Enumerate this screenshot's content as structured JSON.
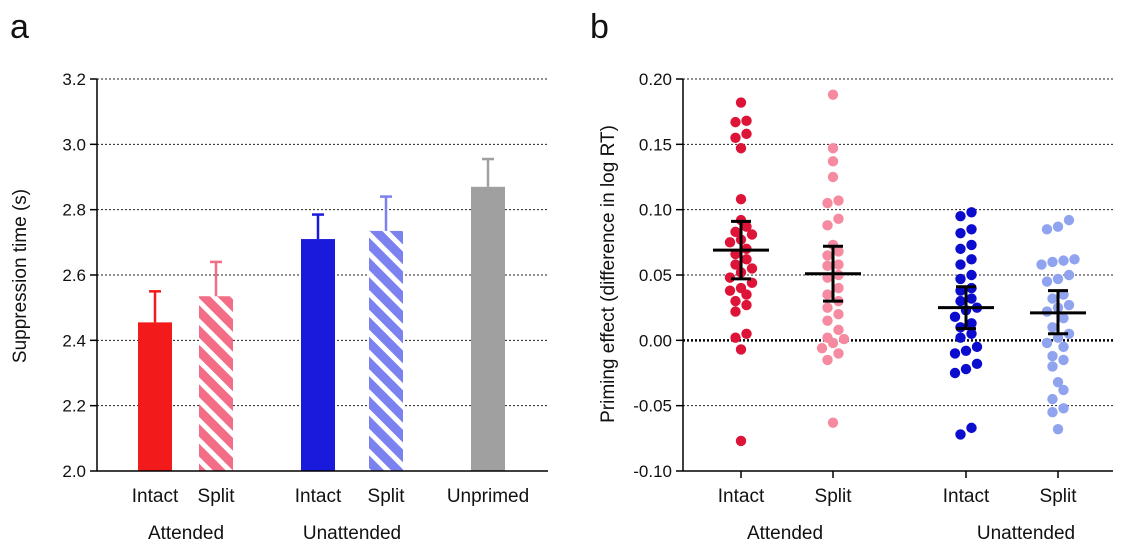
{
  "chart_data": [
    {
      "panel_label": "a",
      "type": "bar",
      "ylabel": "Suppression time (s)",
      "ylim": [
        2.0,
        3.2
      ],
      "yticks": [
        "2.0",
        "2.2",
        "2.4",
        "2.6",
        "2.8",
        "3.0",
        "3.2"
      ],
      "grid": "horizontal dotted",
      "categories": [
        "Intact",
        "Split",
        "Intact",
        "Split",
        "Unprimed"
      ],
      "groups": [
        "Attended",
        "Unattended"
      ],
      "values": [
        2.455,
        2.535,
        2.71,
        2.735,
        2.87
      ],
      "errors": [
        0.095,
        0.105,
        0.075,
        0.105,
        0.085
      ],
      "colors": [
        "#f21a1a",
        "#f46d86",
        "#1a1adc",
        "#7b82ef",
        "#a0a0a0"
      ],
      "patterns": [
        "solid",
        "hatched",
        "solid",
        "hatched",
        "solid"
      ]
    },
    {
      "panel_label": "b",
      "type": "scatter",
      "ylabel": "Priming effect (difference in log RT)",
      "ylim": [
        -0.1,
        0.2
      ],
      "yticks": [
        "-0.10",
        "-0.05",
        "0.00",
        "0.05",
        "0.10",
        "0.15",
        "0.20"
      ],
      "grid": "dotted zero line",
      "categories": [
        "Intact",
        "Split",
        "Intact",
        "Split"
      ],
      "groups": [
        "Attended",
        "Unattended"
      ],
      "colors": [
        "#de1338",
        "#f58aa0",
        "#0c0ccf",
        "#8fa3ef"
      ],
      "means": [
        0.069,
        0.051,
        0.025,
        0.021
      ],
      "ci": [
        [
          0.047,
          0.091
        ],
        [
          0.03,
          0.072
        ],
        [
          0.009,
          0.041
        ],
        [
          0.005,
          0.038
        ]
      ],
      "points": [
        [
          0.182,
          0.168,
          0.167,
          0.158,
          0.155,
          0.147,
          0.108,
          0.092,
          0.087,
          0.083,
          0.081,
          0.077,
          0.075,
          0.07,
          0.066,
          0.062,
          0.058,
          0.055,
          0.052,
          0.048,
          0.044,
          0.04,
          0.038,
          0.035,
          0.03,
          0.027,
          0.022,
          0.005,
          0.002,
          -0.007,
          -0.077
        ],
        [
          0.188,
          0.147,
          0.137,
          0.125,
          0.107,
          0.105,
          0.093,
          0.088,
          0.073,
          0.068,
          0.065,
          0.058,
          0.057,
          0.05,
          0.048,
          0.04,
          0.035,
          0.03,
          0.025,
          0.02,
          0.015,
          0.008,
          0.002,
          0.001,
          -0.002,
          -0.006,
          -0.01,
          -0.015,
          -0.063
        ],
        [
          0.098,
          0.095,
          0.085,
          0.082,
          0.073,
          0.07,
          0.062,
          0.058,
          0.05,
          0.047,
          0.04,
          0.038,
          0.032,
          0.03,
          0.025,
          0.023,
          0.018,
          0.013,
          0.01,
          0.005,
          0.002,
          -0.005,
          -0.008,
          -0.01,
          -0.018,
          -0.022,
          -0.025,
          -0.067,
          -0.072
        ],
        [
          0.092,
          0.087,
          0.085,
          0.062,
          0.061,
          0.06,
          0.058,
          0.05,
          0.047,
          0.045,
          0.035,
          0.032,
          0.027,
          0.025,
          0.022,
          0.017,
          0.01,
          0.005,
          0.002,
          -0.002,
          -0.005,
          -0.012,
          -0.015,
          -0.02,
          -0.032,
          -0.038,
          -0.045,
          -0.052,
          -0.055,
          -0.068
        ]
      ]
    }
  ]
}
